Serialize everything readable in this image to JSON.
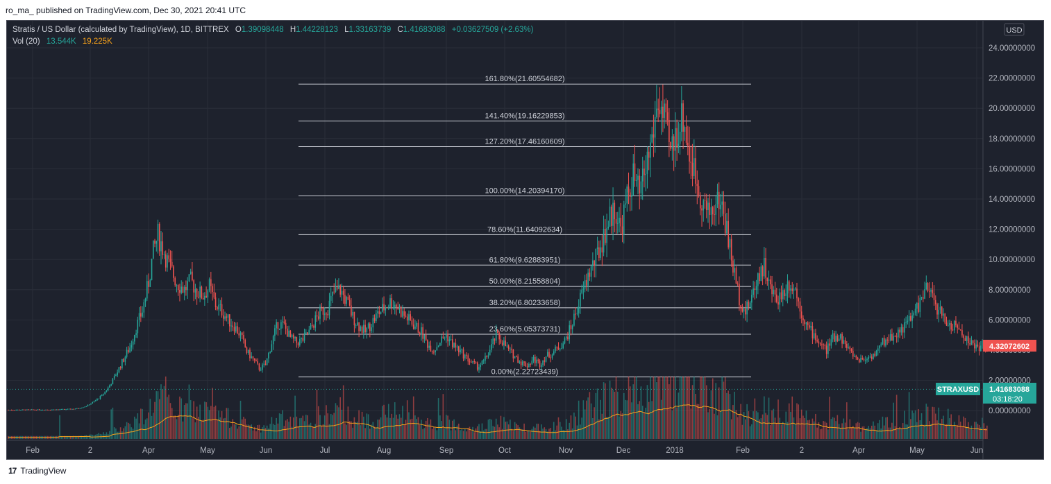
{
  "publisher": "ro_ma_ published on TradingView.com, Dec 30, 2021 20:41 UTC",
  "legend": {
    "symbol": "Stratis / US Dollar (calculated by TradingView), 1D, BITTREX",
    "o_label": "O",
    "o": "1.39098448",
    "h_label": "H",
    "h": "1.44228123",
    "l_label": "L",
    "l": "1.33163739",
    "c_label": "C",
    "c": "1.41683088",
    "change": "+0.03627509 (+2.63%)",
    "vol_label": "Vol (20)",
    "vol1": "13.544K",
    "vol2": "19.225K"
  },
  "currency": "USD",
  "footer": "TradingView",
  "colors": {
    "up": "#26a69a",
    "down": "#ef5350",
    "bg": "#1e222d",
    "grid": "#2a2e39",
    "text": "#b2b5be",
    "vol_ma": "#f7a21b"
  },
  "chart_data": {
    "type": "candlestick",
    "y_ticks": [
      "24.00000000",
      "22.00000000",
      "20.00000000",
      "18.00000000",
      "16.00000000",
      "14.00000000",
      "12.00000000",
      "10.00000000",
      "8.00000000",
      "6.00000000",
      "4.00000000",
      "2.00000000",
      "0.00000000"
    ],
    "y_tick_values": [
      24,
      22,
      20,
      18,
      16,
      14,
      12,
      10,
      8,
      6,
      4,
      2,
      0
    ],
    "x_ticks": [
      "Feb",
      "2",
      "Apr",
      "May",
      "Jun",
      "Jul",
      "Aug",
      "Sep",
      "Oct",
      "Nov",
      "Dec",
      "2018",
      "Feb",
      "2",
      "Apr",
      "May",
      "Jun"
    ],
    "fib_levels": [
      {
        "label": "161.80%(21.60554682)",
        "value": 21.60554682
      },
      {
        "label": "141.40%(19.16229853)",
        "value": 19.16229853
      },
      {
        "label": "127.20%(17.46160609)",
        "value": 17.46160609
      },
      {
        "label": "100.00%(14.20394170)",
        "value": 14.2039417
      },
      {
        "label": "78.60%(11.64092634)",
        "value": 11.64092634
      },
      {
        "label": "61.80%(9.62883951)",
        "value": 9.62883951
      },
      {
        "label": "50.00%(8.21558804)",
        "value": 8.21558804
      },
      {
        "label": "38.20%(6.80233658)",
        "value": 6.80233658
      },
      {
        "label": "23.60%(5.05373731)",
        "value": 5.05373731
      },
      {
        "label": "0.00%(2.22723439)",
        "value": 2.22723439
      }
    ],
    "last_price_label": "4.32072602",
    "last_price": 4.32072602,
    "current": {
      "symbol": "STRAXUSD",
      "price": "1.41683088",
      "countdown": "03:18:20",
      "value": 1.41683088
    },
    "price_path": [
      [
        0,
        0.05
      ],
      [
        20,
        0.06
      ],
      [
        30,
        0.07
      ],
      [
        40,
        0.1
      ],
      [
        45,
        0.15
      ],
      [
        50,
        0.3
      ],
      [
        55,
        0.6
      ],
      [
        60,
        1.0
      ],
      [
        64,
        1.5
      ],
      [
        68,
        2.2
      ],
      [
        72,
        3.0
      ],
      [
        78,
        4.2
      ],
      [
        82,
        5.5
      ],
      [
        86,
        6.6
      ],
      [
        90,
        8.5
      ],
      [
        93,
        10.5
      ],
      [
        96,
        11.6
      ],
      [
        99,
        10.8
      ],
      [
        103,
        9.6
      ],
      [
        108,
        8.5
      ],
      [
        113,
        8.0
      ],
      [
        117,
        8.6
      ],
      [
        121,
        7.9
      ],
      [
        125,
        7.6
      ],
      [
        129,
        8.2
      ],
      [
        133,
        7.0
      ],
      [
        137,
        6.6
      ],
      [
        141,
        6.0
      ],
      [
        145,
        5.6
      ],
      [
        149,
        5.0
      ],
      [
        153,
        3.9
      ],
      [
        157,
        3.4
      ],
      [
        161,
        2.8
      ],
      [
        165,
        3.0
      ],
      [
        169,
        4.5
      ],
      [
        173,
        5.8
      ],
      [
        177,
        5.6
      ],
      [
        181,
        4.8
      ],
      [
        185,
        4.5
      ],
      [
        189,
        4.7
      ],
      [
        193,
        5.2
      ],
      [
        197,
        6.0
      ],
      [
        201,
        6.6
      ],
      [
        205,
        6.8
      ],
      [
        209,
        7.8
      ],
      [
        213,
        8.0
      ],
      [
        217,
        7.2
      ],
      [
        221,
        6.2
      ],
      [
        225,
        5.6
      ],
      [
        229,
        5.2
      ],
      [
        233,
        5.8
      ],
      [
        237,
        6.4
      ],
      [
        241,
        6.8
      ],
      [
        245,
        7.2
      ],
      [
        249,
        7.0
      ],
      [
        253,
        6.4
      ],
      [
        257,
        6.0
      ],
      [
        261,
        5.6
      ],
      [
        265,
        5.2
      ],
      [
        269,
        4.4
      ],
      [
        273,
        4.0
      ],
      [
        277,
        4.6
      ],
      [
        281,
        5.0
      ],
      [
        285,
        4.4
      ],
      [
        289,
        4.0
      ],
      [
        293,
        3.6
      ],
      [
        297,
        3.2
      ],
      [
        301,
        2.9
      ],
      [
        305,
        3.2
      ],
      [
        309,
        4.0
      ],
      [
        313,
        5.0
      ],
      [
        317,
        4.6
      ],
      [
        321,
        4.0
      ],
      [
        325,
        3.6
      ],
      [
        329,
        3.2
      ],
      [
        333,
        3.0
      ],
      [
        337,
        3.4
      ],
      [
        341,
        3.1
      ],
      [
        345,
        3.6
      ],
      [
        349,
        3.8
      ],
      [
        353,
        4.2
      ],
      [
        357,
        4.6
      ],
      [
        361,
        5.5
      ],
      [
        365,
        6.8
      ],
      [
        369,
        8.0
      ],
      [
        373,
        9.2
      ],
      [
        377,
        10.0
      ],
      [
        381,
        11.2
      ],
      [
        385,
        12.5
      ],
      [
        389,
        13.4
      ],
      [
        393,
        12.0
      ],
      [
        397,
        14.0
      ],
      [
        401,
        15.5
      ],
      [
        405,
        14.2
      ],
      [
        409,
        16.0
      ],
      [
        413,
        18.0
      ],
      [
        417,
        20.5
      ],
      [
        421,
        19.0
      ],
      [
        425,
        17.0
      ],
      [
        429,
        18.5
      ],
      [
        433,
        19.5
      ],
      [
        437,
        17.0
      ],
      [
        441,
        15.5
      ],
      [
        445,
        14.0
      ],
      [
        449,
        13.0
      ],
      [
        453,
        13.5
      ],
      [
        457,
        14.0
      ],
      [
        461,
        12.0
      ],
      [
        465,
        9.5
      ],
      [
        469,
        7.5
      ],
      [
        473,
        6.5
      ],
      [
        477,
        7.5
      ],
      [
        481,
        9.0
      ],
      [
        485,
        9.6
      ],
      [
        489,
        8.0
      ],
      [
        493,
        7.4
      ],
      [
        497,
        7.8
      ],
      [
        501,
        8.5
      ],
      [
        505,
        8.0
      ],
      [
        509,
        6.5
      ],
      [
        513,
        5.5
      ],
      [
        517,
        5.0
      ],
      [
        521,
        4.4
      ],
      [
        525,
        4.0
      ],
      [
        529,
        4.8
      ],
      [
        533,
        5.0
      ],
      [
        537,
        4.4
      ],
      [
        541,
        3.8
      ],
      [
        545,
        3.4
      ],
      [
        549,
        3.4
      ],
      [
        553,
        3.6
      ],
      [
        557,
        3.8
      ],
      [
        561,
        4.5
      ],
      [
        565,
        4.8
      ],
      [
        569,
        5.0
      ],
      [
        573,
        5.4
      ],
      [
        577,
        5.8
      ],
      [
        581,
        6.4
      ],
      [
        585,
        7.2
      ],
      [
        589,
        8.0
      ],
      [
        593,
        7.5
      ],
      [
        597,
        6.6
      ],
      [
        601,
        6.0
      ],
      [
        605,
        5.6
      ],
      [
        609,
        5.5
      ],
      [
        613,
        5.0
      ],
      [
        617,
        4.5
      ],
      [
        621,
        4.2
      ],
      [
        625,
        4.3
      ],
      [
        628,
        4.32
      ]
    ]
  }
}
